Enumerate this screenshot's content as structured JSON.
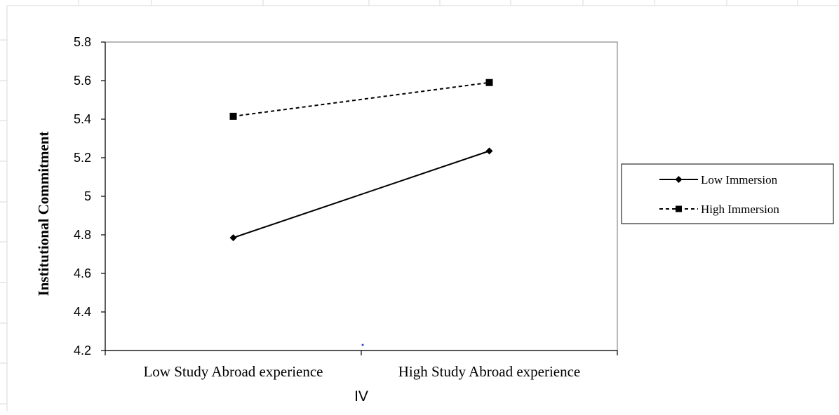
{
  "chart_data": {
    "type": "line",
    "categories": [
      "Low Study Abroad experience",
      "High Study Abroad experience"
    ],
    "series": [
      {
        "name": "Low Immersion",
        "values": [
          4.785,
          5.235
        ],
        "line_style": "solid",
        "marker": "diamond",
        "color": "#000000"
      },
      {
        "name": "High Immersion",
        "values": [
          5.415,
          5.59
        ],
        "line_style": "dashed",
        "marker": "square",
        "color": "#000000"
      }
    ],
    "title": "",
    "xlabel": "IV",
    "ylabel": "Institutional Commitment",
    "ylim": [
      4.2,
      5.8
    ],
    "yticks": [
      "4.2",
      "4.4",
      "4.6",
      "4.8",
      "5",
      "5.2",
      "5.4",
      "5.6",
      "5.8"
    ],
    "grid": false,
    "legend_position": "right"
  },
  "artifacts": {
    "stray_dot_color": "#2b3fd6"
  }
}
